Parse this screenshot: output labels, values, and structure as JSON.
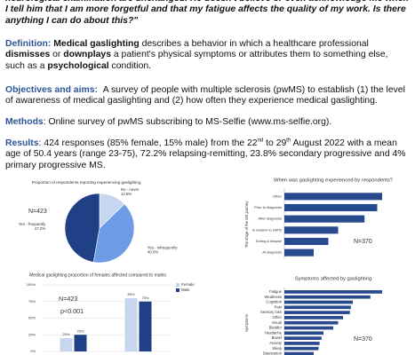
{
  "quote": "neurological examination are unchanged. He doesn't believe or even acknowledge me when I tell him that I am more forgetful and that my fatigue affects the quality of my work. Is there anything I can do about this?\"",
  "definition": {
    "label": "Definition:",
    "parts": [
      " ",
      "Medical gaslighting",
      " describes a behavior in which a healthcare professional ",
      "dismisses",
      " or ",
      "downplays",
      " a patient's physical symptoms or attributes them to something else, such as a ",
      "psychological",
      " condition."
    ]
  },
  "objectives": {
    "label": "Objectives and aims:",
    "text": "A survey of people with multiple sclerosis (pwMS) to establish (1) the level of awareness of medical gaslighting and (2) how often they experience medical gaslighting."
  },
  "methods": {
    "label": "Methods",
    "text": ": Online survey of pwMS subscribing to MS-Selfie (www.ms-selfie.org)."
  },
  "results": {
    "label": "Results",
    "parts": [
      ": 424 responses (85% female, 15% male) from the 22",
      "nd",
      " to 29",
      "th",
      " August 2022 with a mean age of 50.4 years (range 23-75), 72.2% relapsing-remitting, 23.8% secondary progressive and 4% primary progressive MS."
    ]
  },
  "charts": [
    {
      "type": "pie",
      "title": "Proportion of respondents reporting experiencing gaslighting",
      "annotation": "N=423",
      "categories": [
        "No - never",
        "Yes - infrequently",
        "Yes - frequently"
      ],
      "values": [
        12.8,
        40.0,
        47.2
      ],
      "value_labels": [
        "12.8%",
        "40.0%",
        "47.2%"
      ],
      "colors": [
        "#c5d6ee",
        "#6d9be6",
        "#1f3f86"
      ]
    },
    {
      "type": "hbar",
      "title": "When was gaslighting experienced by respondents?",
      "y_label": "The stage of the MS journey",
      "annotation": "N=370",
      "categories": [
        "Other",
        "Prior to diagnosis",
        "After diagnosis",
        "In relation to DMTs",
        "During a relapse",
        "At diagnosis"
      ],
      "values": [
        100,
        95,
        82,
        55,
        45,
        30
      ],
      "xlim": [
        0,
        100
      ],
      "color": "#27498e"
    },
    {
      "type": "bar",
      "title": "Medical gaslighting  proportion of females affected compared to males",
      "annotations": [
        "N=423",
        "p<0.001"
      ],
      "categories": [
        null,
        null
      ],
      "series": [
        {
          "name": "Female",
          "color": "#c5d6ee",
          "values": [
            20,
            80
          ],
          "value_labels": [
            "20%",
            "80%"
          ]
        },
        {
          "name": "Male",
          "color": "#1f3f86",
          "values": [
            25,
            75
          ],
          "value_labels": [
            "25%",
            "75%"
          ]
        }
      ],
      "ylim": [
        0,
        100
      ],
      "yticks": [
        {
          "value": 0,
          "label": "0%"
        },
        {
          "value": 25,
          "label": "25%"
        },
        {
          "value": 50,
          "label": "50%"
        },
        {
          "value": 75,
          "label": "75%"
        },
        {
          "value": 100,
          "label": "100%"
        }
      ],
      "grid": true
    },
    {
      "type": "hbar",
      "title": "Symptoms affected by gaslighting",
      "y_label": "Symptoms",
      "annotation": "N=370",
      "categories": [
        "Fatigue",
        "Weakness",
        "Cognition",
        "Pain",
        "Sensory loss",
        "Other",
        "Visual",
        "Bladder",
        "Headache",
        "Bowel",
        "Anxiety",
        "Sleep",
        "Depression"
      ],
      "values": [
        100,
        88,
        70,
        68,
        67,
        60,
        55,
        50,
        40,
        38,
        36,
        35,
        30
      ],
      "xlim": [
        0,
        100
      ],
      "color": "#27498e"
    }
  ]
}
